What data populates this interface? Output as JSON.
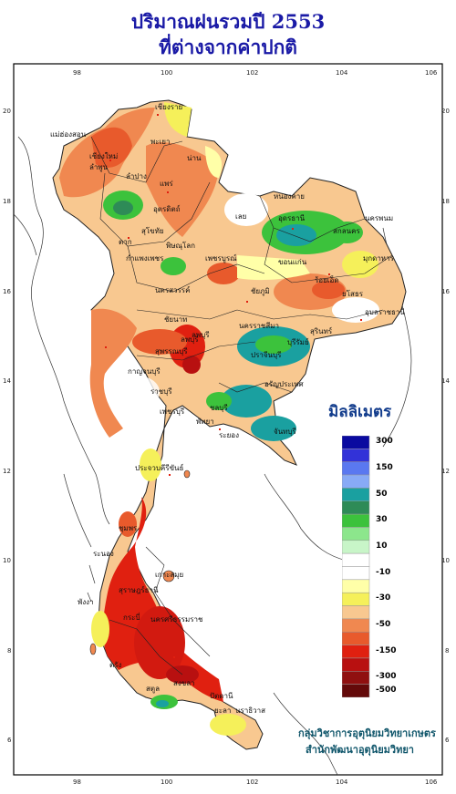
{
  "title_line1": "ปริมาณฝนรวมปี 2553",
  "title_line2": "ที่ต่างจากค่าปกติ",
  "legend": {
    "title": "มิลลิเมตร",
    "classes": [
      {
        "color": "#0a0aa0",
        "label": "300"
      },
      {
        "color": "#3232d8",
        "label": ""
      },
      {
        "color": "#5a78f0",
        "label": "150"
      },
      {
        "color": "#88aaf6",
        "label": ""
      },
      {
        "color": "#1aa0a0",
        "label": "50"
      },
      {
        "color": "#2e8b57",
        "label": ""
      },
      {
        "color": "#3cc23c",
        "label": "30"
      },
      {
        "color": "#8ce68c",
        "label": ""
      },
      {
        "color": "#c8f5c8",
        "label": "10"
      },
      {
        "color": "#ffffff",
        "label": ""
      },
      {
        "color": "#ffffff",
        "label": "-10"
      },
      {
        "color": "#ffffa8",
        "label": ""
      },
      {
        "color": "#f5f05a",
        "label": "-30"
      },
      {
        "color": "#f8c890",
        "label": ""
      },
      {
        "color": "#f08850",
        "label": "-50"
      },
      {
        "color": "#e85a2c",
        "label": ""
      },
      {
        "color": "#e02010",
        "label": "-150"
      },
      {
        "color": "#b81010",
        "label": ""
      },
      {
        "color": "#901010",
        "label": "-300"
      },
      {
        "color": "#640a0a",
        "label": "-500"
      }
    ]
  },
  "axis": {
    "x_ticks": [
      "98",
      "100",
      "102",
      "104",
      "106"
    ],
    "y_ticks": [
      "20",
      "18",
      "16",
      "14",
      "12",
      "10",
      "8",
      "6"
    ]
  },
  "provinces": [
    "เชียงราย",
    "แม่ฮ่องสอน",
    "เชียงใหม่",
    "ลำพูน",
    "ลำปาง",
    "พะเยา",
    "น่าน",
    "แพร่",
    "อุตรดิตถ์",
    "ตาก",
    "พิษณุโลก",
    "สุโขทัย",
    "กำแพงเพชร",
    "เพชรบูรณ์",
    "นครสวรรค์",
    "ชัยนาท",
    "สุพรรณบุรี",
    "กาญจนบุรี",
    "ราชบุรี",
    "เพชรบุรี",
    "ประจวบคีรีขันธ์",
    "ชุมพร",
    "ระนอง",
    "สุราษฎร์ธานี",
    "พังงา",
    "กระบี่",
    "นครศรีธรรมราช",
    "ตรัง",
    "สตูล",
    "สงขลา",
    "ปัตตานี",
    "ยะลา",
    "นราธิวาส",
    "หนองคาย",
    "อุดรธานี",
    "สกลนคร",
    "นครพนม",
    "มุกดาหาร",
    "ขอนแก่น",
    "ร้อยเอ็ด",
    "ยโสธร",
    "อุบลราชธานี",
    "เลย",
    "ชัยภูมิ",
    "นครราชสีมา",
    "บุรีรัมย์",
    "สุรินทร์",
    "ลพบุรี",
    "ปราจีนบุรี",
    "ชลบุรี",
    "ระยอง",
    "จันทบุรี",
    "พัทยา",
    "เกาะสมุย",
    "ลพบุรี",
    "อรัญประเทศ"
  ],
  "credit_line1": "กลุ่มวิชาการอุตุนิยมวิทยาเกษตร",
  "credit_line2": "สำนักพัฒนาอุตุนิยมวิทยา"
}
